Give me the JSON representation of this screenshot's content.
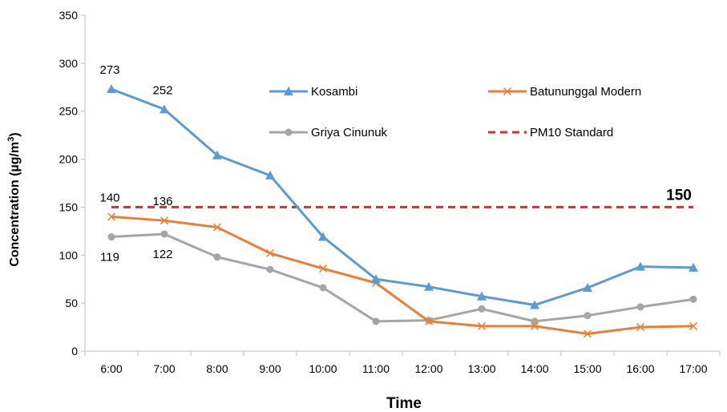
{
  "chart_data": {
    "type": "line",
    "title": "",
    "xlabel": "Time",
    "ylabel": "Concentration (µg/m³)",
    "ylabel_main": "Concentration  (µg/m",
    "ylabel_sup": "3",
    "ylabel_close": ")",
    "ylim": [
      0,
      350
    ],
    "yticks": [
      0,
      50,
      100,
      150,
      200,
      250,
      300,
      350
    ],
    "ytick_labels": [
      "0",
      "50",
      "100",
      "150",
      "200",
      "250",
      "300",
      "350"
    ],
    "categories": [
      "6:00",
      "7:00",
      "8:00",
      "9:00",
      "10:00",
      "11:00",
      "12:00",
      "13:00",
      "14:00",
      "15:00",
      "16:00",
      "17:00"
    ],
    "grid": false,
    "legend_position": "top-right",
    "series": [
      {
        "name": "Kosambi",
        "color": "#5b9bd5",
        "marker": "triangle",
        "values": [
          273,
          252,
          204,
          183,
          119,
          75,
          67,
          57,
          48,
          66,
          88,
          87
        ]
      },
      {
        "name": "Batununggal Modern",
        "color": "#ed7d31",
        "marker": "cross",
        "values": [
          140,
          136,
          129,
          102,
          86,
          71,
          31,
          26,
          26,
          18,
          25,
          26
        ]
      },
      {
        "name": "Griya Cinunuk",
        "color": "#a5a5a5",
        "marker": "circle",
        "values": [
          119,
          122,
          98,
          85,
          66,
          31,
          32,
          44,
          31,
          37,
          46,
          54
        ]
      }
    ],
    "reference_line": {
      "name": "PM10 Standard",
      "value": 150,
      "label": "150",
      "color": "#e3272b",
      "dashed": true
    },
    "annotations": [
      {
        "series": "Kosambi",
        "index": 0,
        "text": "273"
      },
      {
        "series": "Kosambi",
        "index": 1,
        "text": "252"
      },
      {
        "series": "Batununggal Modern",
        "index": 0,
        "text": "140"
      },
      {
        "series": "Batununggal Modern",
        "index": 1,
        "text": "136"
      },
      {
        "series": "Griya Cinunuk",
        "index": 0,
        "text": "119"
      },
      {
        "series": "Griya Cinunuk",
        "index": 1,
        "text": "122"
      }
    ]
  }
}
